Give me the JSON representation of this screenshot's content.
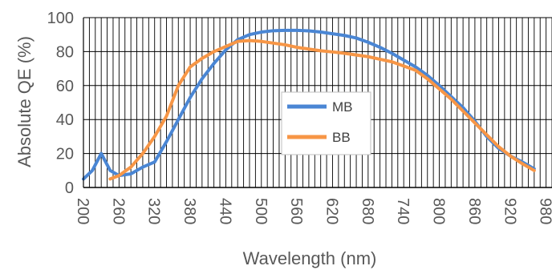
{
  "chart_data": {
    "type": "line",
    "title": "",
    "xlabel": "Wavelength (nm)",
    "ylabel": "Absolute QE (%)",
    "xlim": [
      200,
      990
    ],
    "ylim": [
      0,
      100
    ],
    "x_ticks": [
      200,
      260,
      320,
      380,
      440,
      500,
      560,
      620,
      680,
      740,
      800,
      860,
      920,
      980
    ],
    "x_tick_labels": [
      "200",
      "260",
      "320",
      "380",
      "440",
      "500",
      "560",
      "620",
      "680",
      "740",
      "800",
      "860",
      "920",
      "980"
    ],
    "y_ticks": [
      0,
      20,
      40,
      60,
      80,
      100
    ],
    "y_tick_labels": [
      "0",
      "20",
      "40",
      "60",
      "80",
      "100"
    ],
    "grid": true,
    "legend_position": "center",
    "series": [
      {
        "name": "MB",
        "color": "#4a86d4",
        "points": [
          [
            200,
            5
          ],
          [
            215,
            10
          ],
          [
            230,
            20
          ],
          [
            245,
            10
          ],
          [
            260,
            7
          ],
          [
            280,
            8
          ],
          [
            300,
            12
          ],
          [
            320,
            15
          ],
          [
            340,
            27
          ],
          [
            360,
            40
          ],
          [
            380,
            53
          ],
          [
            400,
            64
          ],
          [
            420,
            73
          ],
          [
            440,
            81
          ],
          [
            460,
            87
          ],
          [
            480,
            90
          ],
          [
            500,
            91.5
          ],
          [
            520,
            92.3
          ],
          [
            540,
            92.5
          ],
          [
            560,
            92.5
          ],
          [
            580,
            92.2
          ],
          [
            600,
            91.5
          ],
          [
            620,
            90.5
          ],
          [
            640,
            89.5
          ],
          [
            660,
            88
          ],
          [
            680,
            85.5
          ],
          [
            700,
            82.5
          ],
          [
            720,
            79
          ],
          [
            740,
            75
          ],
          [
            760,
            71
          ],
          [
            780,
            66
          ],
          [
            800,
            60
          ],
          [
            820,
            53.5
          ],
          [
            840,
            47
          ],
          [
            860,
            39
          ],
          [
            880,
            30
          ],
          [
            900,
            23
          ],
          [
            920,
            18.5
          ],
          [
            940,
            15
          ],
          [
            960,
            11
          ]
        ]
      },
      {
        "name": "BB",
        "color": "#f79646",
        "points": [
          [
            245,
            5
          ],
          [
            260,
            7
          ],
          [
            280,
            12
          ],
          [
            300,
            20
          ],
          [
            320,
            30
          ],
          [
            340,
            42
          ],
          [
            360,
            60
          ],
          [
            380,
            71
          ],
          [
            400,
            76
          ],
          [
            420,
            80
          ],
          [
            440,
            83
          ],
          [
            460,
            86
          ],
          [
            480,
            86.5
          ],
          [
            500,
            86
          ],
          [
            520,
            85
          ],
          [
            540,
            84
          ],
          [
            560,
            82.5
          ],
          [
            580,
            81.5
          ],
          [
            600,
            80.5
          ],
          [
            620,
            79.8
          ],
          [
            640,
            79
          ],
          [
            660,
            78
          ],
          [
            680,
            77
          ],
          [
            700,
            75.5
          ],
          [
            720,
            74
          ],
          [
            740,
            71.5
          ],
          [
            760,
            69
          ],
          [
            780,
            64
          ],
          [
            800,
            58
          ],
          [
            820,
            52
          ],
          [
            840,
            45
          ],
          [
            860,
            38
          ],
          [
            880,
            31
          ],
          [
            900,
            24
          ],
          [
            920,
            18.5
          ],
          [
            940,
            14
          ],
          [
            960,
            10
          ]
        ]
      }
    ]
  }
}
